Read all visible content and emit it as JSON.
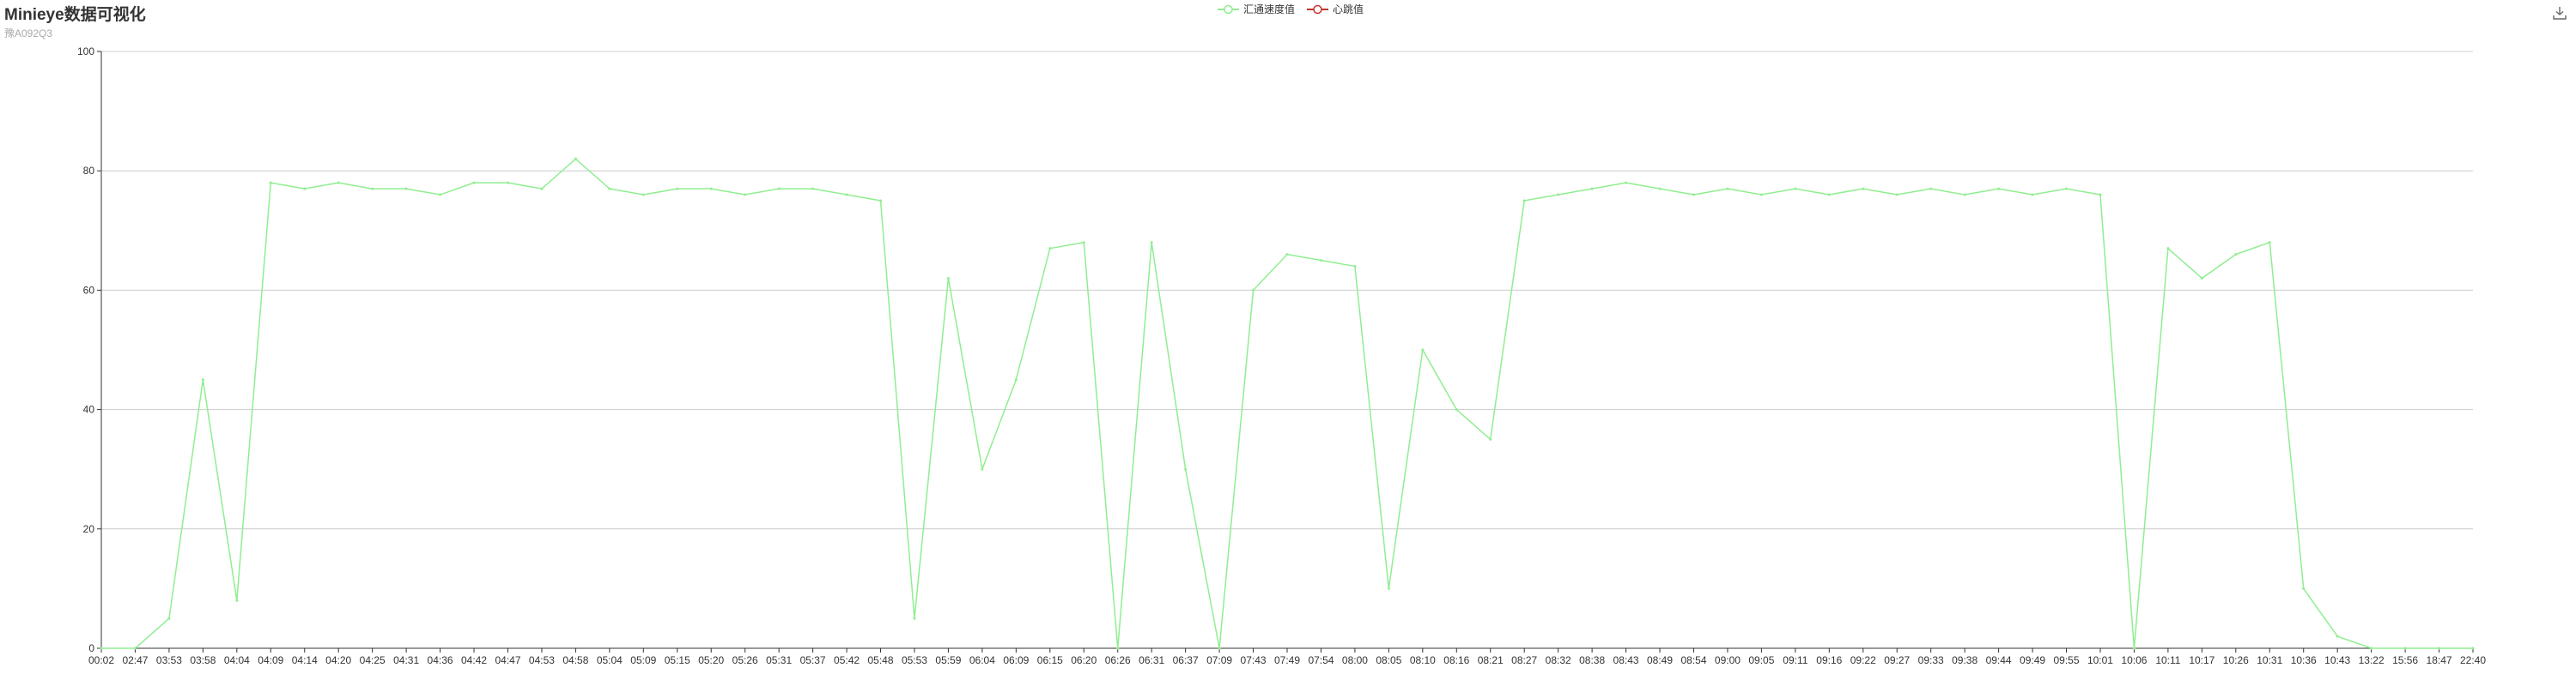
{
  "title": "Minieye数据可视化",
  "subtitle": "豫A092Q3",
  "legend": [
    {
      "name": "汇通速度值",
      "color": "#90ee90"
    },
    {
      "name": "心跳值",
      "color": "#c23531"
    }
  ],
  "toolbar": {
    "download_icon": "download-icon"
  },
  "chart_data": {
    "type": "line",
    "title": "Minieye数据可视化",
    "subtitle": "豫A092Q3",
    "xlabel": "",
    "ylabel": "",
    "ylim": [
      0,
      100
    ],
    "yticks": [
      0,
      20,
      40,
      60,
      80,
      100
    ],
    "grid": true,
    "legend_position": "top-center",
    "x_tick_labels": [
      "00:02",
      "02:47",
      "03:53",
      "03:58",
      "04:04",
      "04:09",
      "04:14",
      "04:20",
      "04:25",
      "04:31",
      "04:36",
      "04:42",
      "04:47",
      "04:53",
      "04:58",
      "05:04",
      "05:09",
      "05:15",
      "05:20",
      "05:26",
      "05:31",
      "05:37",
      "05:42",
      "05:48",
      "05:53",
      "05:59",
      "06:04",
      "06:09",
      "06:15",
      "06:20",
      "06:26",
      "06:31",
      "06:37",
      "07:09",
      "07:43",
      "07:49",
      "07:54",
      "08:00",
      "08:05",
      "08:10",
      "08:16",
      "08:21",
      "08:27",
      "08:32",
      "08:38",
      "08:43",
      "08:49",
      "08:54",
      "09:00",
      "09:05",
      "09:11",
      "09:16",
      "09:22",
      "09:27",
      "09:33",
      "09:38",
      "09:44",
      "09:49",
      "09:55",
      "10:01",
      "10:06",
      "10:11",
      "10:17",
      "10:26",
      "10:31",
      "10:36",
      "10:43",
      "13:22",
      "15:56",
      "18:47",
      "22:40"
    ],
    "series": [
      {
        "name": "汇通速度值",
        "color": "#90ee90",
        "x": [
          "00:02",
          "02:47",
          "03:53",
          "03:58",
          "04:04",
          "04:09",
          "04:14",
          "04:20",
          "04:25",
          "04:31",
          "04:36",
          "04:42",
          "04:47",
          "04:53",
          "04:58",
          "05:04",
          "05:09",
          "05:15",
          "05:20",
          "05:26",
          "05:31",
          "05:37",
          "05:42",
          "05:48",
          "05:53",
          "05:59",
          "06:04",
          "06:09",
          "06:15",
          "06:20",
          "06:26",
          "06:31",
          "06:37",
          "07:09",
          "07:43",
          "07:49",
          "07:54",
          "08:00",
          "08:05",
          "08:10",
          "08:16",
          "08:21",
          "08:27",
          "08:32",
          "08:38",
          "08:43",
          "08:49",
          "08:54",
          "09:00",
          "09:05",
          "09:11",
          "09:16",
          "09:22",
          "09:27",
          "09:33",
          "09:38",
          "09:44",
          "09:49",
          "09:55",
          "10:01",
          "10:06",
          "10:11",
          "10:17",
          "10:26",
          "10:31",
          "10:36",
          "10:43",
          "13:22",
          "15:56",
          "18:47",
          "22:40"
        ],
        "values": [
          0,
          0,
          5,
          45,
          8,
          78,
          77,
          78,
          77,
          77,
          76,
          78,
          78,
          77,
          82,
          77,
          76,
          77,
          77,
          76,
          77,
          77,
          76,
          75,
          5,
          62,
          30,
          45,
          67,
          68,
          0,
          68,
          30,
          0,
          60,
          66,
          65,
          64,
          10,
          50,
          40,
          35,
          75,
          76,
          77,
          78,
          77,
          76,
          77,
          76,
          77,
          76,
          77,
          76,
          77,
          76,
          77,
          76,
          77,
          76,
          0,
          67,
          62,
          66,
          68,
          10,
          2,
          0,
          0,
          0,
          0
        ]
      },
      {
        "name": "心跳值",
        "color": "#c23531",
        "x": [],
        "values": []
      }
    ]
  }
}
